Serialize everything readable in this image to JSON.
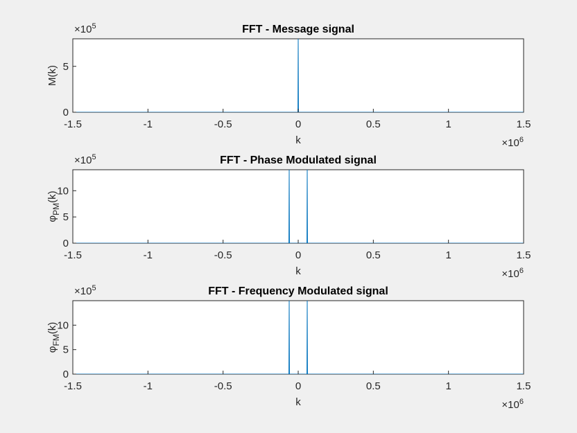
{
  "chart_data": [
    {
      "type": "line",
      "title": "FFT - Message signal",
      "xlabel": "k",
      "ylabel": "M(k)",
      "x": [
        -1500000,
        -2000,
        0,
        2000,
        1500000
      ],
      "series": [
        {
          "name": "M",
          "color": "#0072bd",
          "values": [
            0,
            0,
            800000,
            0,
            0
          ]
        }
      ],
      "xlim": [
        -1500000,
        1500000
      ],
      "xticks": [
        {
          "value": -1500000,
          "label": "-1.5"
        },
        {
          "value": -1000000,
          "label": "-1"
        },
        {
          "value": -500000,
          "label": "-0.5"
        },
        0,
        {
          "value": 500000,
          "label": "0.5"
        },
        {
          "value": 1000000,
          "label": "1"
        },
        {
          "value": 1500000,
          "label": "1.5"
        }
      ],
      "ylim": [
        0,
        800000
      ],
      "yticks": [
        0,
        {
          "value": 500000,
          "label": "5"
        }
      ],
      "x_multiplier": "×10",
      "x_exponent": "6",
      "y_multiplier": "×10",
      "y_exponent": "5"
    },
    {
      "type": "line",
      "title": "FFT - Phase Modulated signal",
      "xlabel": "k",
      "ylabel": "φ",
      "ylabel_sub": "PM",
      "ylabel_suffix": "(k)",
      "x": [
        -1500000,
        -62000,
        -60000,
        -58000,
        58000,
        60000,
        62000,
        1500000
      ],
      "series": [
        {
          "name": "PM",
          "color": "#0072bd",
          "values": [
            0,
            0,
            1400000,
            0,
            0,
            1400000,
            0,
            0
          ]
        }
      ],
      "xlim": [
        -1500000,
        1500000
      ],
      "xticks": [
        {
          "value": -1500000,
          "label": "-1.5"
        },
        {
          "value": -1000000,
          "label": "-1"
        },
        {
          "value": -500000,
          "label": "-0.5"
        },
        0,
        {
          "value": 500000,
          "label": "0.5"
        },
        {
          "value": 1000000,
          "label": "1"
        },
        {
          "value": 1500000,
          "label": "1.5"
        }
      ],
      "ylim": [
        0,
        1400000
      ],
      "yticks": [
        0,
        {
          "value": 500000,
          "label": "5"
        },
        {
          "value": 1000000,
          "label": "10"
        }
      ],
      "x_multiplier": "×10",
      "x_exponent": "6",
      "y_multiplier": "×10",
      "y_exponent": "5"
    },
    {
      "type": "line",
      "title": "FFT - Frequency Modulated signal",
      "xlabel": "k",
      "ylabel": "φ",
      "ylabel_sub": "FM",
      "ylabel_suffix": "(k)",
      "x": [
        -1500000,
        -62000,
        -60000,
        -58000,
        58000,
        60000,
        62000,
        1500000
      ],
      "series": [
        {
          "name": "FM",
          "color": "#0072bd",
          "values": [
            0,
            0,
            1500000,
            0,
            0,
            1500000,
            0,
            0
          ]
        }
      ],
      "xlim": [
        -1500000,
        1500000
      ],
      "xticks": [
        {
          "value": -1500000,
          "label": "-1.5"
        },
        {
          "value": -1000000,
          "label": "-1"
        },
        {
          "value": -500000,
          "label": "-0.5"
        },
        0,
        {
          "value": 500000,
          "label": "0.5"
        },
        {
          "value": 1000000,
          "label": "1"
        },
        {
          "value": 1500000,
          "label": "1.5"
        }
      ],
      "ylim": [
        0,
        1500000
      ],
      "yticks": [
        0,
        {
          "value": 500000,
          "label": "5"
        },
        {
          "value": 1000000,
          "label": "10"
        }
      ],
      "x_multiplier": "×10",
      "x_exponent": "6",
      "y_multiplier": "×10",
      "y_exponent": "5"
    }
  ]
}
